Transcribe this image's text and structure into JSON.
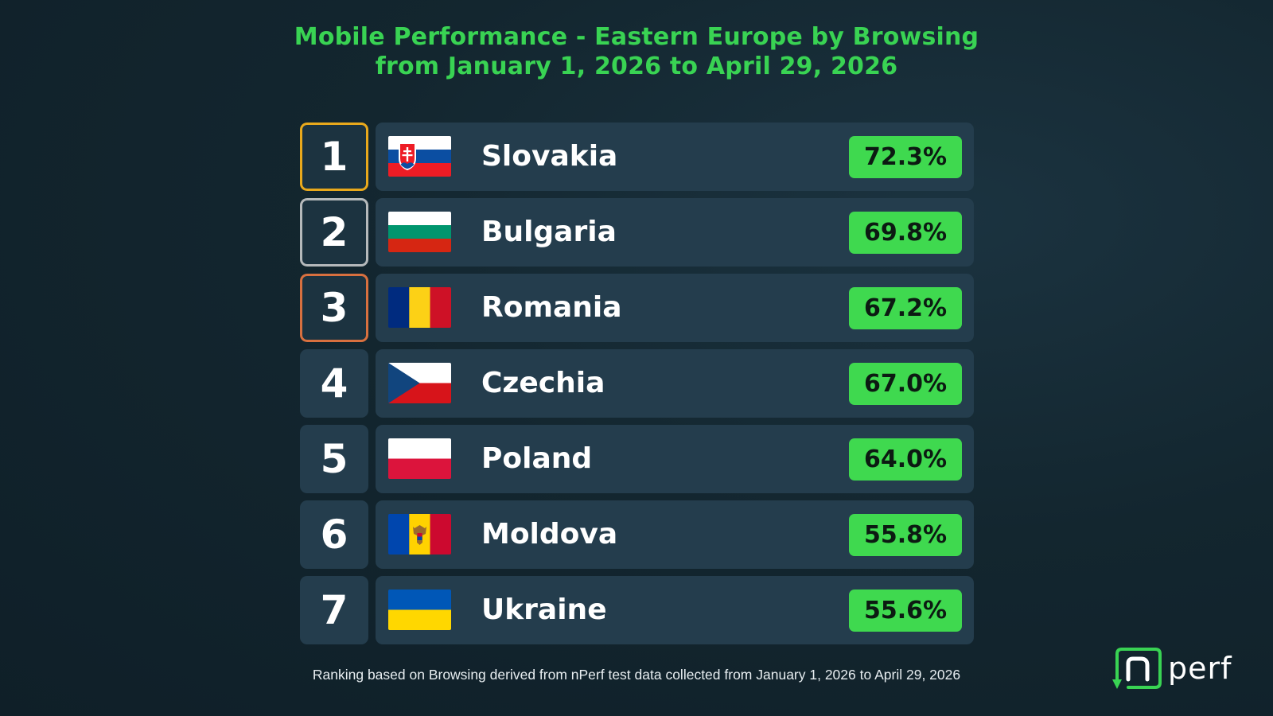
{
  "title": {
    "line1": "Mobile Performance - Eastern Europe by Browsing",
    "line2": "from January 1, 2026 to April 29, 2026"
  },
  "ranking": [
    {
      "rank": "1",
      "country": "Slovakia",
      "score": "72.3%",
      "flag": "slovakia-flag"
    },
    {
      "rank": "2",
      "country": "Bulgaria",
      "score": "69.8%",
      "flag": "bulgaria-flag"
    },
    {
      "rank": "3",
      "country": "Romania",
      "score": "67.2%",
      "flag": "romania-flag"
    },
    {
      "rank": "4",
      "country": "Czechia",
      "score": "67.0%",
      "flag": "czechia-flag"
    },
    {
      "rank": "5",
      "country": "Poland",
      "score": "64.0%",
      "flag": "poland-flag"
    },
    {
      "rank": "6",
      "country": "Moldova",
      "score": "55.8%",
      "flag": "moldova-flag"
    },
    {
      "rank": "7",
      "country": "Ukraine",
      "score": "55.6%",
      "flag": "ukraine-flag"
    }
  ],
  "footer": "Ranking based on Browsing derived from nPerf test data collected from January 1, 2026 to April 29, 2026",
  "logo": {
    "text": "nperf",
    "icon": "nperf-logo-icon"
  },
  "colors": {
    "accent_green": "#39d353",
    "score_badge": "#3fd94f",
    "gold": "#e9a91c",
    "silver": "#b5b9bb",
    "bronze": "#d8703f",
    "card": "#243d4d"
  }
}
